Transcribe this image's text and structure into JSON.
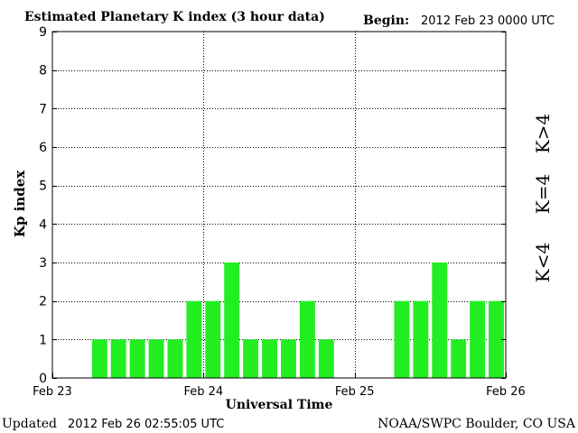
{
  "header": {
    "title": "Estimated Planetary K index (3 hour data)",
    "begin_label": "Begin:",
    "begin_value": "2012 Feb 23 0000 UTC"
  },
  "footer": {
    "updated_label": "Updated",
    "updated_value": "2012 Feb 26 02:55:05 UTC",
    "source": "NOAA/SWPC Boulder, CO USA"
  },
  "legend": {
    "high_label": "K>4",
    "eq_label": "K=4",
    "low_label": "K<4",
    "high_color": "#ff2a00",
    "eq_color": "#ffd200",
    "low_color": "#22ee22"
  },
  "chart_data": {
    "type": "bar",
    "title": "Estimated Planetary K index (3 hour data)",
    "xlabel": "Universal Time",
    "ylabel": "Kp index",
    "ylim": [
      0,
      9
    ],
    "yticks": [
      0,
      1,
      2,
      3,
      4,
      5,
      6,
      7,
      8,
      9
    ],
    "x_tick_labels": [
      "Feb 23",
      "Feb 24",
      "Feb 25",
      "Feb 26"
    ],
    "grid": true,
    "bar_color": "#22ee22",
    "interval_hours": 3,
    "values": [
      null,
      null,
      1,
      1,
      1,
      1,
      1,
      2,
      2,
      3,
      1,
      1,
      1,
      2,
      1,
      null,
      null,
      null,
      2,
      2,
      3,
      1,
      2,
      2
    ]
  }
}
